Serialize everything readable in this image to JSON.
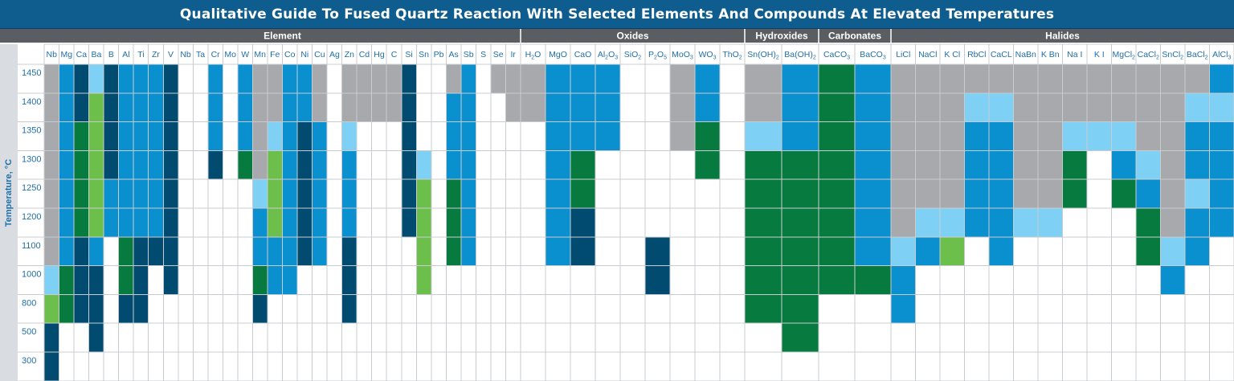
{
  "title": "Qualitative Guide To Fused Quartz Reaction With Selected Elements And Compounds At Elevated Temperatures",
  "colors": {
    "header_bg": "#0e5d8e",
    "group_header_bg": "#5a5d62",
    "gray": "#a7a9ac",
    "light_blue": "#7fd0f5",
    "blue": "#0a8fcf",
    "dark_blue": "#004b6f",
    "light_green": "#6cbf4b",
    "dark_green": "#077a3f",
    "label_text": "#1f6fa8"
  },
  "chart_data": {
    "type": "heatmap",
    "title": "Qualitative Guide To Fused Quartz Reaction With Selected Elements And Compounds At Elevated Temperatures",
    "ylabel": "Temperature, °C",
    "groups": [
      {
        "name": "Element",
        "span": 34
      },
      {
        "name": "Oxides",
        "span": 8
      },
      {
        "name": "Hydroxides",
        "span": 2
      },
      {
        "name": "Carbonates",
        "span": 2
      },
      {
        "name": "Halides",
        "span": 13
      }
    ],
    "columns": [
      "Nb",
      "Mg",
      "Ca",
      "Ba",
      "B",
      "Al",
      "Ti",
      "Zr",
      "V",
      "Nb",
      "Ta",
      "Cr",
      "Mo",
      "W",
      "Mn",
      "Fe",
      "Co",
      "Ni",
      "Cu",
      "Ag",
      "Zn",
      "Cd",
      "Hg",
      "C",
      "Si",
      "Sn",
      "Pb",
      "As",
      "Sb",
      "S",
      "Se",
      "Ir",
      "H2O",
      "MgO",
      "CaO",
      "Al2O3",
      "SiO2",
      "P2O5",
      "MoO3",
      "WO3",
      "ThO2",
      "Sn(OH)2",
      "Ba(OH)2",
      "CaCO3",
      "BaCO3",
      "LiCl",
      "NaCl",
      "K Cl",
      "RbCl",
      "CaCL",
      "NaBn",
      "K Bn",
      "Na I",
      "K I",
      "MgCl2",
      "CaCl2",
      "SnCl2",
      "BaCl2",
      "AlCl3"
    ],
    "column_labels": [
      {
        "t": "Nb"
      },
      {
        "t": "Mg"
      },
      {
        "t": "Ca"
      },
      {
        "t": "Ba"
      },
      {
        "t": "B"
      },
      {
        "t": "Al"
      },
      {
        "t": "Ti"
      },
      {
        "t": "Zr"
      },
      {
        "t": "V"
      },
      {
        "t": "Nb"
      },
      {
        "t": "Ta"
      },
      {
        "t": "Cr"
      },
      {
        "t": "Mo"
      },
      {
        "t": "W"
      },
      {
        "t": "Mn"
      },
      {
        "t": "Fe"
      },
      {
        "t": "Co"
      },
      {
        "t": "Ni"
      },
      {
        "t": "Cu"
      },
      {
        "t": "Ag"
      },
      {
        "t": "Zn"
      },
      {
        "t": "Cd"
      },
      {
        "t": "Hg"
      },
      {
        "t": "C"
      },
      {
        "t": "Si"
      },
      {
        "t": "Sn"
      },
      {
        "t": "Pb"
      },
      {
        "t": "As"
      },
      {
        "t": "Sb"
      },
      {
        "t": "S"
      },
      {
        "t": "Se"
      },
      {
        "t": "Ir"
      },
      {
        "t": "H",
        "s": "2",
        "t2": "O"
      },
      {
        "t": "MgO"
      },
      {
        "t": "CaO"
      },
      {
        "t": "Al",
        "s": "2",
        "t2": "O",
        "s2": "3"
      },
      {
        "t": "SiO",
        "s": "2"
      },
      {
        "t": "P",
        "s": "2",
        "t2": "O",
        "s2": "5"
      },
      {
        "t": "MoO",
        "s": "3"
      },
      {
        "t": "WO",
        "s": "3"
      },
      {
        "t": "ThO",
        "s": "2"
      },
      {
        "t": "Sn(OH)",
        "s": "2"
      },
      {
        "t": "Ba(OH)",
        "s": "2"
      },
      {
        "t": "CaCO",
        "s": "3"
      },
      {
        "t": "BaCO",
        "s": "3"
      },
      {
        "t": "LiCl"
      },
      {
        "t": "NaCl"
      },
      {
        "t": "K Cl"
      },
      {
        "t": "RbCl"
      },
      {
        "t": "CaCL"
      },
      {
        "t": "NaBn"
      },
      {
        "t": "K Bn"
      },
      {
        "t": "Na I"
      },
      {
        "t": "K I"
      },
      {
        "t": "MgCl",
        "s": "2"
      },
      {
        "t": "CaCl",
        "s": "2"
      },
      {
        "t": "SnCl",
        "s": "2"
      },
      {
        "t": "BaCl",
        "s": "2"
      },
      {
        "t": "AlCl",
        "s": "3"
      }
    ],
    "rows": [
      "1450",
      "1400",
      "1350",
      "1300",
      "1250",
      "1200",
      "1100",
      "1000",
      "800",
      "500",
      "300"
    ],
    "legend_codes": {
      "0": "none",
      "1": "gray",
      "2": "light_blue",
      "3": "blue",
      "4": "dark_blue",
      "5": "light_green",
      "6": "dark_green"
    },
    "cells": [
      [
        1,
        3,
        4,
        2,
        4,
        3,
        3,
        3,
        4,
        0,
        0,
        3,
        0,
        3,
        1,
        1,
        3,
        3,
        1,
        0,
        1,
        1,
        1,
        1,
        4,
        0,
        0,
        1,
        3,
        0,
        1,
        1,
        1,
        3,
        3,
        3,
        0,
        0,
        1,
        3,
        0,
        1,
        3,
        6,
        3,
        1,
        1,
        1,
        1,
        1,
        1,
        1,
        1,
        1,
        1,
        1,
        1,
        1,
        3
      ],
      [
        1,
        3,
        4,
        5,
        4,
        3,
        3,
        3,
        4,
        0,
        0,
        3,
        0,
        3,
        1,
        1,
        3,
        3,
        1,
        0,
        1,
        1,
        1,
        1,
        4,
        0,
        0,
        3,
        3,
        0,
        0,
        1,
        1,
        3,
        3,
        3,
        0,
        0,
        1,
        3,
        0,
        1,
        3,
        6,
        3,
        1,
        1,
        1,
        2,
        2,
        1,
        1,
        1,
        1,
        1,
        1,
        1,
        2,
        2
      ],
      [
        1,
        3,
        6,
        5,
        4,
        3,
        3,
        3,
        4,
        0,
        0,
        3,
        0,
        3,
        1,
        2,
        3,
        4,
        3,
        0,
        2,
        0,
        0,
        0,
        4,
        0,
        0,
        3,
        3,
        0,
        0,
        0,
        0,
        3,
        3,
        3,
        0,
        0,
        1,
        6,
        0,
        2,
        3,
        6,
        3,
        1,
        1,
        1,
        3,
        3,
        1,
        1,
        2,
        2,
        2,
        1,
        1,
        3,
        3
      ],
      [
        1,
        3,
        6,
        5,
        4,
        3,
        3,
        3,
        4,
        0,
        0,
        4,
        0,
        6,
        1,
        5,
        3,
        4,
        3,
        0,
        3,
        0,
        0,
        0,
        4,
        2,
        0,
        3,
        3,
        0,
        0,
        0,
        0,
        3,
        6,
        0,
        0,
        0,
        0,
        6,
        0,
        6,
        6,
        6,
        3,
        1,
        1,
        1,
        3,
        3,
        1,
        1,
        6,
        0,
        3,
        2,
        1,
        3,
        3
      ],
      [
        1,
        3,
        6,
        5,
        3,
        3,
        3,
        3,
        4,
        0,
        0,
        0,
        0,
        0,
        2,
        5,
        3,
        4,
        3,
        0,
        3,
        0,
        0,
        0,
        4,
        5,
        0,
        6,
        3,
        0,
        0,
        0,
        0,
        3,
        6,
        0,
        0,
        0,
        0,
        0,
        0,
        6,
        6,
        6,
        3,
        1,
        1,
        1,
        3,
        3,
        1,
        1,
        6,
        0,
        6,
        3,
        1,
        2,
        3
      ],
      [
        1,
        3,
        6,
        5,
        3,
        3,
        3,
        3,
        4,
        0,
        0,
        0,
        0,
        0,
        3,
        5,
        3,
        4,
        3,
        0,
        3,
        0,
        0,
        0,
        4,
        5,
        0,
        6,
        3,
        0,
        0,
        0,
        0,
        3,
        4,
        0,
        0,
        0,
        0,
        0,
        0,
        6,
        6,
        6,
        3,
        1,
        2,
        2,
        3,
        3,
        2,
        2,
        0,
        0,
        0,
        6,
        1,
        3,
        3
      ],
      [
        1,
        3,
        4,
        3,
        0,
        6,
        4,
        4,
        4,
        0,
        0,
        0,
        0,
        0,
        3,
        3,
        3,
        4,
        3,
        0,
        4,
        0,
        0,
        0,
        0,
        5,
        0,
        6,
        3,
        0,
        0,
        0,
        0,
        3,
        4,
        0,
        0,
        4,
        0,
        0,
        0,
        6,
        6,
        6,
        3,
        2,
        3,
        5,
        0,
        3,
        0,
        0,
        0,
        0,
        0,
        6,
        2,
        3,
        0
      ],
      [
        2,
        6,
        4,
        4,
        0,
        6,
        4,
        0,
        4,
        0,
        0,
        0,
        0,
        0,
        6,
        3,
        3,
        0,
        0,
        0,
        4,
        0,
        0,
        0,
        0,
        5,
        0,
        0,
        0,
        0,
        0,
        0,
        0,
        0,
        0,
        0,
        0,
        4,
        0,
        0,
        0,
        6,
        6,
        6,
        6,
        3,
        0,
        0,
        0,
        0,
        0,
        0,
        0,
        0,
        0,
        0,
        3,
        0,
        0
      ],
      [
        5,
        6,
        4,
        4,
        0,
        4,
        4,
        0,
        0,
        0,
        0,
        0,
        0,
        0,
        4,
        0,
        0,
        0,
        0,
        0,
        4,
        0,
        0,
        0,
        0,
        0,
        0,
        0,
        0,
        0,
        0,
        0,
        0,
        0,
        0,
        0,
        0,
        0,
        0,
        0,
        0,
        6,
        6,
        0,
        0,
        3,
        0,
        0,
        0,
        0,
        0,
        0,
        0,
        0,
        0,
        0,
        0,
        0,
        0
      ],
      [
        4,
        0,
        0,
        4,
        0,
        0,
        0,
        0,
        0,
        0,
        0,
        0,
        0,
        0,
        0,
        0,
        0,
        0,
        0,
        0,
        0,
        0,
        0,
        0,
        0,
        0,
        0,
        0,
        0,
        0,
        0,
        0,
        0,
        0,
        0,
        0,
        0,
        0,
        0,
        0,
        0,
        0,
        6,
        0,
        0,
        0,
        0,
        0,
        0,
        0,
        0,
        0,
        0,
        0,
        0,
        0,
        0,
        0,
        0
      ],
      [
        4,
        0,
        0,
        0,
        0,
        0,
        0,
        0,
        0,
        0,
        0,
        0,
        0,
        0,
        0,
        0,
        0,
        0,
        0,
        0,
        0,
        0,
        0,
        0,
        0,
        0,
        0,
        0,
        0,
        0,
        0,
        0,
        0,
        0,
        0,
        0,
        0,
        0,
        0,
        0,
        0,
        0,
        0,
        0,
        0,
        0,
        0,
        0,
        0,
        0,
        0,
        0,
        0,
        0,
        0,
        0,
        0,
        0,
        0
      ]
    ]
  }
}
